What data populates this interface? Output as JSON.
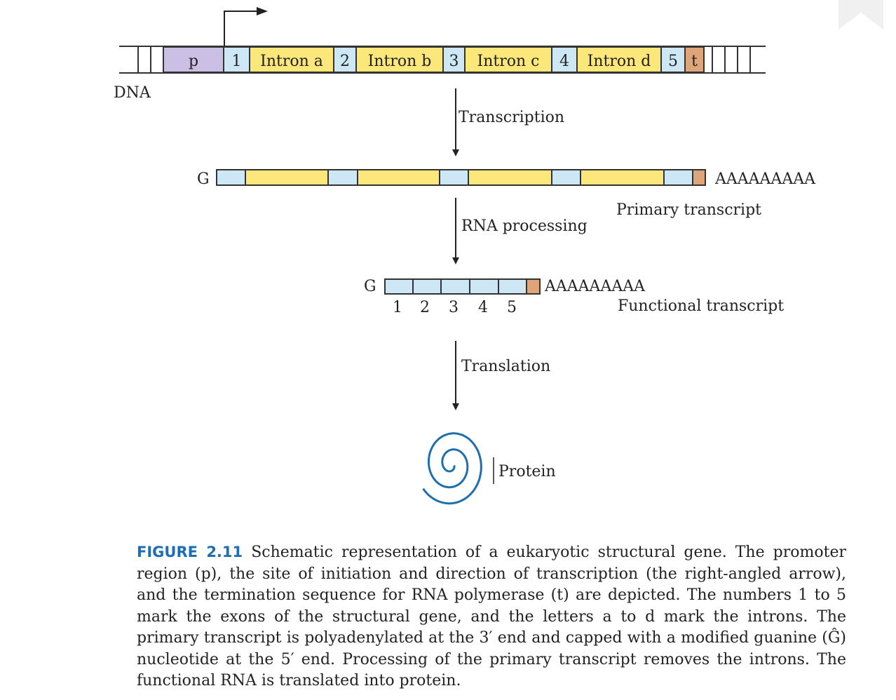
{
  "dna": {
    "label": "DNA",
    "segments": [
      {
        "text": "p",
        "kind": "promoter"
      },
      {
        "text": "1",
        "kind": "exon"
      },
      {
        "text": "Intron a",
        "kind": "intron"
      },
      {
        "text": "2",
        "kind": "exon"
      },
      {
        "text": "Intron b",
        "kind": "intron"
      },
      {
        "text": "3",
        "kind": "exon"
      },
      {
        "text": "Intron c",
        "kind": "intron"
      },
      {
        "text": "4",
        "kind": "exon"
      },
      {
        "text": "Intron d",
        "kind": "intron"
      },
      {
        "text": "5",
        "kind": "exon"
      },
      {
        "text": "t",
        "kind": "terminator"
      }
    ]
  },
  "steps": {
    "transcription": "Transcription",
    "rna_processing": "RNA processing",
    "translation": "Translation"
  },
  "primary_transcript": {
    "cap": "G",
    "poly_a": "AAAAAAAAA",
    "label": "Primary transcript"
  },
  "functional_transcript": {
    "cap": "G",
    "poly_a": "AAAAAAAAA",
    "label": "Functional transcript",
    "exon_numbers": [
      "1",
      "2",
      "3",
      "4",
      "5"
    ]
  },
  "protein": {
    "label": "Protein"
  },
  "caption": {
    "figure_label": "FIGURE 2.11",
    "text": "Schematic representation of a eukaryotic structural gene. The promoter region (p), the site of initiation and direction of transcription (the right-angled arrow), and the termination sequence for RNA polymerase (t) are depicted. The numbers 1 to 5 mark the exons of the structural gene, and the letters a to d mark the introns. The primary transcript is polyadenylated at the 3′ end and capped with a modified guanine (Ĝ) nucleotide at the 5′ end. Processing of the primary transcript removes the introns. The functional RNA is translated into protein."
  },
  "colors": {
    "exon": "#cde8f4",
    "intron": "#fbe77a",
    "promoter": "#cbbfe6",
    "terminator": "#dfa57a",
    "line": "#333333",
    "caption_label": "#1f6db3"
  }
}
